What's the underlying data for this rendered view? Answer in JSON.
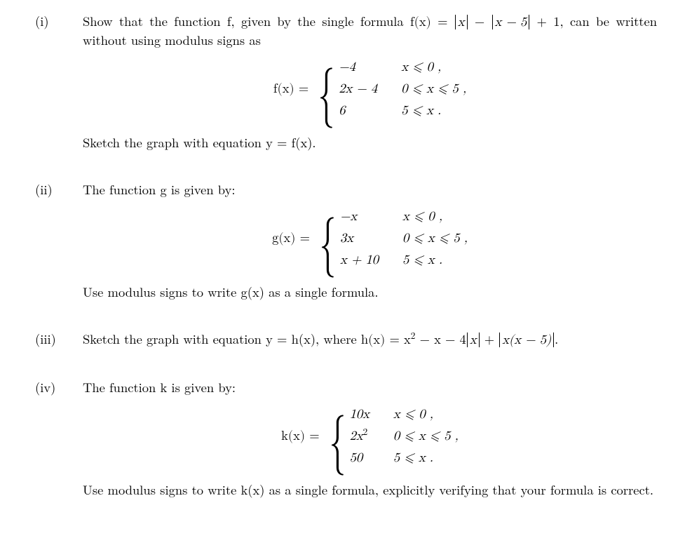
{
  "colors": {
    "text": "#000000",
    "background": "#ffffff"
  },
  "font": {
    "family_serif": "Latin Modern Roman",
    "base_size_pt": 14
  },
  "items": {
    "i": {
      "label": "(i)",
      "intro_a": "Show that the function f, given by the single formula ",
      "intro_formula_lhs": "f(x) = ",
      "intro_formula_abs1": "x",
      "intro_formula_mid": " − ",
      "intro_formula_abs2": "x − 5",
      "intro_formula_tail": " + 1",
      "intro_b": ", can be written without using modulus signs as",
      "piecewise": {
        "lhs": "f(x) =",
        "cases": [
          {
            "expr": "−4",
            "cond": "x ⩽ 0 ,"
          },
          {
            "expr": "2x − 4",
            "cond": "0 ⩽ x ⩽ 5 ,"
          },
          {
            "expr": "6",
            "cond": "5 ⩽ x ."
          }
        ]
      },
      "follow": "Sketch the graph with equation y = f(x)."
    },
    "ii": {
      "label": "(ii)",
      "intro": "The function g is given by:",
      "piecewise": {
        "lhs": "g(x) =",
        "cases": [
          {
            "expr": "−x",
            "cond": "x ⩽ 0 ,"
          },
          {
            "expr": "3x",
            "cond": "0 ⩽ x ⩽ 5 ,"
          },
          {
            "expr": "x + 10",
            "cond": "5 ⩽ x ."
          }
        ]
      },
      "follow": "Use modulus signs to write g(x) as a single formula."
    },
    "iii": {
      "label": "(iii)",
      "text_a": "Sketch the graph with equation y = h(x), where ",
      "h_lhs": "h(x) = x",
      "h_sup": "2",
      "h_mid1": " − x − 4",
      "h_abs1": "x",
      "h_mid2": " + ",
      "h_abs2": "x(x − 5)",
      "h_tail": "."
    },
    "iv": {
      "label": "(iv)",
      "intro": "The function k is given by:",
      "piecewise": {
        "lhs": "k(x) =",
        "cases": [
          {
            "expr": "10x",
            "cond": "x ⩽ 0 ,"
          },
          {
            "expr": "2x",
            "expr_sup": "2",
            "cond": "0 ⩽ x ⩽ 5 ,"
          },
          {
            "expr": "50",
            "cond": "5 ⩽ x ."
          }
        ]
      },
      "follow": "Use modulus signs to write k(x) as a single formula, explicitly verifying that your formula is correct."
    }
  }
}
